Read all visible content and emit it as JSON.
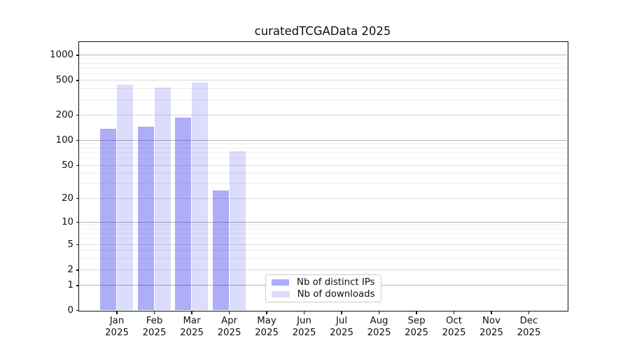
{
  "chart_data": {
    "type": "bar",
    "title": "curatedTCGAData 2025",
    "year": "2025",
    "month_labels": [
      "Jan",
      "Feb",
      "Mar",
      "Apr",
      "May",
      "Jun",
      "Jul",
      "Aug",
      "Sep",
      "Oct",
      "Nov",
      "Dec"
    ],
    "categories": [
      "Jan 2025",
      "Feb 2025",
      "Mar 2025",
      "Apr 2025",
      "May 2025",
      "Jun 2025",
      "Jul 2025",
      "Aug 2025",
      "Sep 2025",
      "Oct 2025",
      "Nov 2025",
      "Dec 2025"
    ],
    "series": [
      {
        "name": "Nb of distinct IPs",
        "color": "rgba(20,20,235,0.35)",
        "color_hex": "#a7a7f8",
        "values": [
          137,
          145,
          185,
          25,
          0,
          0,
          0,
          0,
          0,
          0,
          0,
          0
        ]
      },
      {
        "name": "Nb of downloads",
        "color": "rgba(20,20,235,0.15)",
        "color_hex": "#d9d9fc",
        "values": [
          440,
          415,
          470,
          73,
          0,
          0,
          0,
          0,
          0,
          0,
          0,
          0
        ]
      }
    ],
    "yticks": [
      0,
      1,
      2,
      5,
      10,
      20,
      50,
      100,
      200,
      500,
      1000
    ],
    "yscale": "symlog",
    "xlabel": "",
    "ylabel": "",
    "grid": "horizontal",
    "legend_position": "lower center"
  }
}
